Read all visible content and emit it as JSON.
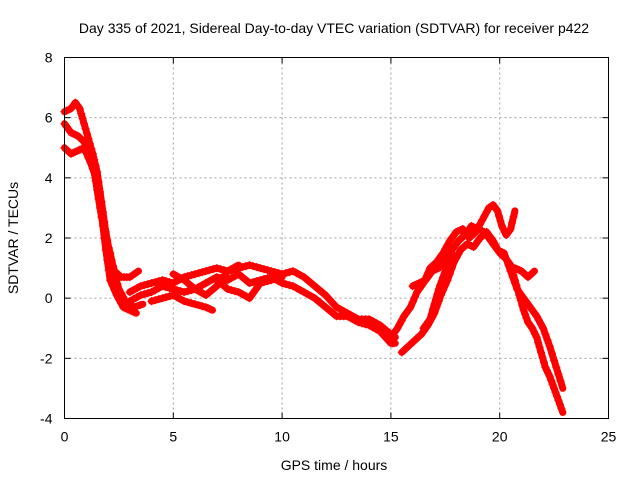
{
  "chart_data": {
    "type": "scatter",
    "title": "Day 335 of 2021, Sidereal Day-to-day VTEC variation (SDTVAR) for receiver p422",
    "xlabel": "GPS time / hours",
    "ylabel": "SDTVAR / TECUs",
    "xlim": [
      0,
      25
    ],
    "ylim": [
      -4,
      8
    ],
    "xticks": [
      0,
      5,
      10,
      15,
      20,
      25
    ],
    "yticks": [
      -4,
      -2,
      0,
      2,
      4,
      6,
      8
    ],
    "grid": true,
    "marker": "+",
    "series": [
      {
        "name": "SDTVAR",
        "color": "#ff0000",
        "traces": [
          [
            [
              0.0,
              6.2
            ],
            [
              0.3,
              6.3
            ],
            [
              0.5,
              6.5
            ],
            [
              0.7,
              6.3
            ],
            [
              0.9,
              5.8
            ],
            [
              1.1,
              5.3
            ],
            [
              1.3,
              4.8
            ],
            [
              1.5,
              4.2
            ],
            [
              1.7,
              3.2
            ],
            [
              1.9,
              2.2
            ],
            [
              2.1,
              1.4
            ],
            [
              2.3,
              0.9
            ],
            [
              2.6,
              0.7
            ],
            [
              3.0,
              0.7
            ],
            [
              3.4,
              0.9
            ]
          ],
          [
            [
              0.0,
              5.8
            ],
            [
              0.3,
              5.5
            ],
            [
              0.6,
              5.4
            ],
            [
              0.9,
              5.2
            ],
            [
              1.1,
              4.9
            ],
            [
              1.3,
              4.5
            ],
            [
              1.5,
              3.6
            ],
            [
              1.7,
              2.7
            ],
            [
              1.9,
              2.0
            ],
            [
              2.1,
              1.5
            ],
            [
              2.3,
              0.8
            ],
            [
              2.5,
              0.3
            ],
            [
              2.8,
              -0.1
            ],
            [
              3.2,
              -0.3
            ],
            [
              3.6,
              -0.2
            ]
          ],
          [
            [
              0.0,
              5.0
            ],
            [
              0.3,
              4.8
            ],
            [
              0.6,
              4.9
            ],
            [
              0.9,
              5.0
            ],
            [
              1.2,
              4.5
            ],
            [
              1.5,
              3.9
            ],
            [
              1.7,
              2.8
            ],
            [
              1.9,
              1.6
            ],
            [
              2.1,
              0.6
            ],
            [
              2.4,
              0.1
            ],
            [
              2.7,
              -0.3
            ],
            [
              3.0,
              -0.4
            ],
            [
              3.3,
              -0.5
            ]
          ],
          [
            [
              3.0,
              0.2
            ],
            [
              3.5,
              0.4
            ],
            [
              4.0,
              0.5
            ],
            [
              4.5,
              0.6
            ],
            [
              5.0,
              0.5
            ],
            [
              5.5,
              0.7
            ],
            [
              6.0,
              0.8
            ],
            [
              6.5,
              0.9
            ],
            [
              7.0,
              1.0
            ],
            [
              7.5,
              0.9
            ],
            [
              8.0,
              1.0
            ],
            [
              8.5,
              1.1
            ],
            [
              9.0,
              1.0
            ],
            [
              9.5,
              0.9
            ],
            [
              10.0,
              0.8
            ],
            [
              10.5,
              0.9
            ],
            [
              11.0,
              0.7
            ],
            [
              11.5,
              0.4
            ],
            [
              12.0,
              0.1
            ],
            [
              12.5,
              -0.3
            ],
            [
              13.0,
              -0.5
            ],
            [
              13.5,
              -0.7
            ],
            [
              14.0,
              -0.7
            ],
            [
              14.5,
              -0.9
            ],
            [
              15.0,
              -1.2
            ],
            [
              15.2,
              -1.3
            ]
          ],
          [
            [
              3.0,
              -0.1
            ],
            [
              3.5,
              0.1
            ],
            [
              4.0,
              0.2
            ],
            [
              4.5,
              0.4
            ],
            [
              5.0,
              0.3
            ],
            [
              5.5,
              0.2
            ],
            [
              6.0,
              0.3
            ],
            [
              6.5,
              0.5
            ],
            [
              7.0,
              0.7
            ],
            [
              7.5,
              0.6
            ],
            [
              8.0,
              0.8
            ],
            [
              8.5,
              0.5
            ],
            [
              9.0,
              0.6
            ],
            [
              9.5,
              0.7
            ],
            [
              10.0,
              0.5
            ],
            [
              10.5,
              0.4
            ],
            [
              11.0,
              0.2
            ],
            [
              11.5,
              0.0
            ],
            [
              12.0,
              -0.3
            ],
            [
              12.5,
              -0.6
            ],
            [
              13.0,
              -0.6
            ],
            [
              13.5,
              -0.8
            ],
            [
              14.0,
              -0.9
            ],
            [
              14.5,
              -1.1
            ],
            [
              15.0,
              -1.5
            ],
            [
              15.2,
              -1.5
            ]
          ],
          [
            [
              4.0,
              -0.1
            ],
            [
              4.5,
              0.0
            ],
            [
              5.0,
              0.1
            ],
            [
              5.5,
              -0.1
            ],
            [
              6.0,
              -0.2
            ],
            [
              6.5,
              -0.3
            ],
            [
              6.8,
              -0.4
            ]
          ],
          [
            [
              7.0,
              0.6
            ],
            [
              7.5,
              0.3
            ],
            [
              8.0,
              0.2
            ],
            [
              8.5,
              0.0
            ],
            [
              9.0,
              0.5
            ],
            [
              9.5,
              0.6
            ],
            [
              10.0,
              0.7
            ]
          ],
          [
            [
              5.0,
              0.8
            ],
            [
              5.5,
              0.6
            ],
            [
              6.0,
              0.3
            ],
            [
              6.5,
              0.1
            ],
            [
              7.0,
              0.4
            ],
            [
              7.5,
              0.9
            ],
            [
              8.0,
              1.1
            ]
          ],
          [
            [
              15.0,
              -1.3
            ],
            [
              15.3,
              -1.0
            ],
            [
              15.6,
              -0.6
            ],
            [
              15.9,
              -0.3
            ],
            [
              16.2,
              0.2
            ],
            [
              16.5,
              0.5
            ],
            [
              16.8,
              1.0
            ],
            [
              17.1,
              1.2
            ],
            [
              17.4,
              1.5
            ],
            [
              17.7,
              1.9
            ],
            [
              18.0,
              2.2
            ],
            [
              18.3,
              2.3
            ],
            [
              18.6,
              2.0
            ],
            [
              18.9,
              2.2
            ],
            [
              19.2,
              2.6
            ],
            [
              19.5,
              3.0
            ],
            [
              19.7,
              3.1
            ],
            [
              19.9,
              2.9
            ],
            [
              20.1,
              2.4
            ],
            [
              20.3,
              2.1
            ],
            [
              20.5,
              2.3
            ],
            [
              20.7,
              2.9
            ]
          ],
          [
            [
              15.5,
              -1.8
            ],
            [
              15.8,
              -1.6
            ],
            [
              16.1,
              -1.4
            ],
            [
              16.4,
              -1.2
            ],
            [
              16.7,
              -0.9
            ],
            [
              17.0,
              -0.5
            ],
            [
              17.3,
              0.1
            ],
            [
              17.6,
              0.6
            ],
            [
              17.9,
              1.2
            ],
            [
              18.2,
              1.6
            ],
            [
              18.5,
              1.8
            ],
            [
              18.8,
              1.7
            ],
            [
              19.1,
              2.0
            ],
            [
              19.4,
              2.2
            ],
            [
              19.7,
              1.9
            ],
            [
              20.0,
              1.5
            ],
            [
              20.3,
              1.3
            ],
            [
              20.5,
              1.1
            ],
            [
              20.7,
              0.6
            ],
            [
              20.9,
              0.1
            ],
            [
              21.1,
              -0.4
            ],
            [
              21.3,
              -0.8
            ],
            [
              21.5,
              -1.0
            ],
            [
              21.7,
              -1.3
            ],
            [
              21.9,
              -1.8
            ],
            [
              22.1,
              -2.3
            ],
            [
              22.3,
              -2.6
            ],
            [
              22.5,
              -3.0
            ],
            [
              22.7,
              -3.4
            ],
            [
              22.9,
              -3.8
            ]
          ],
          [
            [
              16.0,
              0.4
            ],
            [
              16.3,
              0.5
            ],
            [
              16.6,
              0.6
            ],
            [
              16.9,
              0.9
            ],
            [
              17.2,
              1.0
            ],
            [
              17.5,
              1.3
            ],
            [
              17.8,
              1.6
            ],
            [
              18.1,
              1.9
            ],
            [
              18.4,
              2.1
            ],
            [
              18.7,
              2.4
            ],
            [
              19.0,
              2.3
            ],
            [
              19.3,
              2.2
            ],
            [
              19.6,
              1.9
            ],
            [
              19.9,
              1.6
            ],
            [
              20.2,
              1.5
            ],
            [
              20.5,
              0.9
            ],
            [
              20.8,
              0.3
            ],
            [
              21.1,
              0.0
            ],
            [
              21.4,
              -0.3
            ],
            [
              21.7,
              -0.6
            ],
            [
              22.0,
              -1.0
            ],
            [
              22.3,
              -1.6
            ],
            [
              22.6,
              -2.3
            ],
            [
              22.9,
              -3.0
            ]
          ],
          [
            [
              20.7,
              1.0
            ],
            [
              21.0,
              0.9
            ],
            [
              21.3,
              0.7
            ],
            [
              21.6,
              0.9
            ]
          ],
          [
            [
              16.5,
              -1.0
            ],
            [
              16.8,
              -0.7
            ],
            [
              17.0,
              -0.2
            ],
            [
              17.2,
              0.3
            ],
            [
              17.4,
              0.7
            ],
            [
              17.6,
              1.1
            ],
            [
              17.8,
              1.5
            ]
          ]
        ]
      }
    ]
  }
}
